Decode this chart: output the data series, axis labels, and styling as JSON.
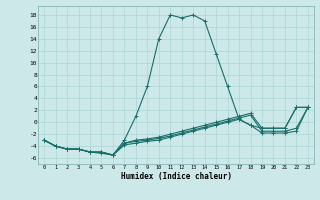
{
  "xlabel": "Humidex (Indice chaleur)",
  "xlim": [
    -0.5,
    23.5
  ],
  "ylim": [
    -7,
    19.5
  ],
  "yticks": [
    -6,
    -4,
    -2,
    0,
    2,
    4,
    6,
    8,
    10,
    12,
    14,
    16,
    18
  ],
  "xticks": [
    0,
    1,
    2,
    3,
    4,
    5,
    6,
    7,
    8,
    9,
    10,
    11,
    12,
    13,
    14,
    15,
    16,
    17,
    18,
    19,
    20,
    21,
    22,
    23
  ],
  "bg_color": "#cde8e8",
  "line_color": "#1a6e6a",
  "grid_color": "#b0d8d8",
  "series": [
    {
      "x": [
        0,
        1,
        2,
        3,
        4,
        5,
        6,
        7,
        8,
        9,
        10,
        11,
        12,
        13,
        14,
        15,
        16,
        17,
        18,
        19,
        20,
        21,
        22,
        23
      ],
      "y": [
        -3,
        -4,
        -4.5,
        -4.5,
        -5,
        -5,
        -5.5,
        -3,
        1,
        6,
        14,
        18,
        17.5,
        18,
        17,
        11.5,
        6,
        0.5,
        -0.5,
        -1,
        -1,
        -1,
        2.5,
        2.5
      ]
    },
    {
      "x": [
        0,
        1,
        2,
        3,
        4,
        5,
        6,
        7,
        8,
        9,
        10,
        11,
        12,
        13,
        14,
        15,
        16,
        17,
        18,
        19,
        20,
        21,
        22,
        23
      ],
      "y": [
        -3,
        -4,
        -4.5,
        -4.5,
        -5,
        -5,
        -5.5,
        -3.5,
        -3,
        -2.8,
        -2.5,
        -2,
        -1.5,
        -1,
        -0.5,
        0,
        0.5,
        1,
        1.5,
        -1,
        -1,
        -1,
        2.5,
        2.5
      ]
    },
    {
      "x": [
        0,
        1,
        2,
        3,
        4,
        5,
        6,
        7,
        8,
        9,
        10,
        11,
        12,
        13,
        14,
        15,
        16,
        17,
        18,
        19,
        20,
        21,
        22,
        23
      ],
      "y": [
        -3,
        -4,
        -4.5,
        -4.5,
        -5,
        -5,
        -5.5,
        -3.5,
        -3.2,
        -3,
        -2.7,
        -2.3,
        -1.8,
        -1.3,
        -0.8,
        -0.3,
        0.2,
        0.7,
        1.2,
        -1.5,
        -1.5,
        -1.5,
        -1,
        2.5
      ]
    },
    {
      "x": [
        0,
        1,
        2,
        3,
        4,
        5,
        6,
        7,
        8,
        9,
        10,
        11,
        12,
        13,
        14,
        15,
        16,
        17,
        18,
        19,
        20,
        21,
        22,
        23
      ],
      "y": [
        -3,
        -4,
        -4.5,
        -4.5,
        -5,
        -5.2,
        -5.5,
        -3.8,
        -3.5,
        -3.2,
        -3,
        -2.5,
        -2,
        -1.5,
        -1,
        -0.5,
        0,
        0.5,
        -0.5,
        -1.8,
        -1.8,
        -1.8,
        -1.5,
        2.5
      ]
    }
  ]
}
